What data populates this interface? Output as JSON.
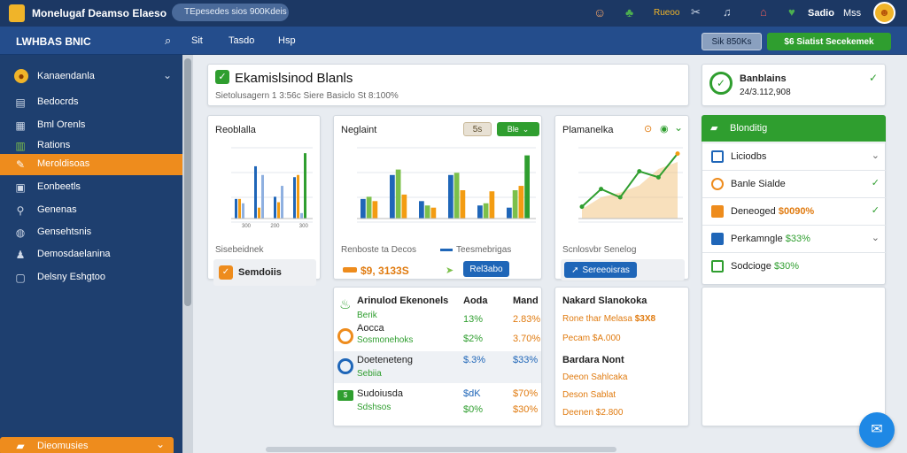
{
  "topbar": {
    "app_title": "Monelugaf Deamso Elaeso",
    "search_text": "TEpesedes sios 900Kdeis",
    "notify_label": "Rueoo",
    "user_name": "Sadio",
    "user_role": "Mss"
  },
  "navbar": {
    "brand": "LWHBAS BNIC",
    "links": [
      "Sit",
      "Tasdo",
      "Hsp"
    ],
    "btn_secondary": "Sik 850Ks",
    "btn_primary": "$6 Siatist Secekemek"
  },
  "sidebar": {
    "header": "Kanaendanla",
    "items": [
      {
        "label": "Bedocrds",
        "icon": "list-icon"
      },
      {
        "label": "Bml Orenls",
        "icon": "grid-icon"
      },
      {
        "label": "Rations",
        "icon": "chart-icon"
      },
      {
        "label": "Meroldisoas",
        "icon": "wrench-icon",
        "active": true
      },
      {
        "label": "Eonbeetls",
        "icon": "table-icon"
      },
      {
        "label": "Genenas",
        "icon": "pin-icon"
      },
      {
        "label": "Gensehtsnis",
        "icon": "globe-icon"
      },
      {
        "label": "Demosdaelanina",
        "icon": "users-icon"
      },
      {
        "label": "Delsny Eshgtoo",
        "icon": "doc-icon"
      }
    ],
    "footer": "Dieomusies"
  },
  "summary": {
    "title": "Ekamislsinod Blanls",
    "subtitle": "Sietolusagern 1 3:56c Siere Basiclo St 8:100%"
  },
  "balance_card": {
    "title": "Banblains",
    "value": "24/3.112,908"
  },
  "panel1": {
    "title": "Reoblalla",
    "footer_label": "Sisebeidnek",
    "button_label": "Semdoiis",
    "tick_labels": [
      "300",
      "200",
      "300"
    ]
  },
  "panel2": {
    "title": "Neglaint",
    "control_label": "5s",
    "control_badge": "Ble",
    "footer_left": "Renboste ta Decos",
    "footer_right": "Teesmebrigas",
    "value_left": "$9, 3133S",
    "value_right": "Rel3abo"
  },
  "panel3": {
    "title": "Plamanelka",
    "footer_label": "Scnlosvbr Senelog",
    "button_label": "Sereeoisras"
  },
  "table1": {
    "headers": [
      "Arinulod Ekenonels",
      "Aoda",
      "Mand"
    ],
    "rows": [
      {
        "name": "",
        "sub": "Berik",
        "c1": "13%",
        "c2": "2.83%",
        "icon": "leaf-icon"
      },
      {
        "name": "Aocca",
        "sub": "Sosmonehoks",
        "c1": "$2%",
        "c2": "3.70%",
        "icon": "target-icon"
      },
      {
        "name": "Doeteneteng",
        "sub": "Sebiia",
        "c1": "$.3%",
        "c2": "$33%",
        "icon": "circle-icon"
      },
      {
        "name": "Sudoiusda",
        "sub": "Sdshsos",
        "c1": "$dK",
        "c2": "$70%",
        "icon": "money-icon"
      }
    ]
  },
  "table2": {
    "title": "Nakard Slanokoka",
    "rows": [
      {
        "label": "Rone thar Melasa",
        "value": "$3X8",
        "bold": false
      },
      {
        "label": "Pecam $A.000",
        "value": "",
        "bold": false
      },
      {
        "label": "Bardara Nont",
        "value": "",
        "bold": true
      },
      {
        "label": "Deeon Sahlcaka",
        "value": "",
        "bold": false
      },
      {
        "label": "Deson Sablat",
        "value": "",
        "bold": false
      },
      {
        "label": "Deenen $2.800",
        "value": "",
        "bold": false
      }
    ]
  },
  "right_list": {
    "header": "Blonditig",
    "items": [
      {
        "label": "Liciodbs",
        "value": "",
        "icon": "square-icon",
        "chev": "chevron-down-icon"
      },
      {
        "label": "Banle Sialde",
        "value": "",
        "icon": "coin-icon",
        "chev": "check-icon"
      },
      {
        "label": "Deneoged",
        "value": "$0090%",
        "icon": "box-icon",
        "chev": "check-icon"
      },
      {
        "label": "Perkamngle",
        "value": "$33%",
        "icon": "card-icon",
        "chev": "chevron-down-icon"
      },
      {
        "label": "Sodcioge",
        "value": "$30%",
        "icon": "bars-icon",
        "chev": ""
      }
    ]
  },
  "chart_data": [
    {
      "type": "bar",
      "series": [
        {
          "name": "",
          "color": "#1f66b8",
          "values": [
            18,
            48,
            20,
            38
          ]
        },
        {
          "name": "",
          "color": "#f39c12",
          "values": [
            18,
            10,
            15,
            40
          ]
        },
        {
          "name": "",
          "color": "#8fb0e0",
          "values": [
            14,
            40,
            30,
            5
          ]
        },
        {
          "name": "",
          "color": "#2f9e2f",
          "values": [
            0,
            0,
            0,
            60
          ]
        }
      ],
      "categories": [
        "",
        "",
        "",
        ""
      ]
    },
    {
      "type": "bar",
      "series": [
        {
          "name": "",
          "color": "#1f66b8",
          "values": [
            18,
            40,
            16,
            40,
            12,
            10
          ]
        },
        {
          "name": "",
          "color": "#7cc04b",
          "values": [
            20,
            45,
            12,
            42,
            14,
            26
          ]
        },
        {
          "name": "",
          "color": "#f39c12",
          "values": [
            16,
            22,
            10,
            26,
            25,
            30
          ]
        },
        {
          "name": "",
          "color": "#2f9e2f",
          "values": [
            0,
            0,
            0,
            0,
            0,
            58
          ]
        }
      ],
      "categories": [
        "",
        "",
        "",
        "",
        "",
        ""
      ]
    },
    {
      "type": "area",
      "series": [
        {
          "name": "",
          "color": "#2f9e2f",
          "values": [
            10,
            25,
            18,
            40,
            35,
            55
          ]
        },
        {
          "name": "",
          "color": "#f2c27a",
          "values": [
            8,
            18,
            22,
            28,
            42,
            48
          ]
        }
      ],
      "categories": [
        "",
        "",
        "",
        "",
        "",
        ""
      ]
    }
  ]
}
